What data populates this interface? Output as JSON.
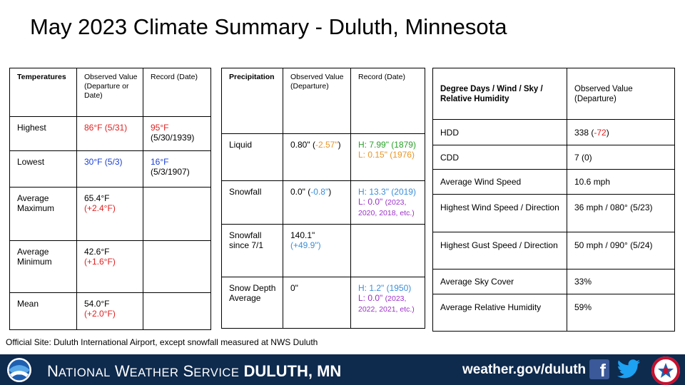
{
  "title": "May 2023 Climate Summary - Duluth, Minnesota",
  "temperatures": {
    "headers": [
      "Temperatures",
      "Observed Value (Departure or Date)",
      "Record (Date)"
    ],
    "highest": {
      "label": "Highest",
      "observed": "86°F (5/31)",
      "record_value": "95°F",
      "record_date": "(5/30/1939)"
    },
    "lowest": {
      "label": "Lowest",
      "observed": "30°F (5/3)",
      "record_value": "16°F",
      "record_date": "(5/3/1907)"
    },
    "avg_max": {
      "label": "Average Maximum",
      "value": "65.4°F",
      "departure": "(+2.4°F)"
    },
    "avg_min": {
      "label": "Average Minimum",
      "value": "42.6°F",
      "departure": "(+1.6°F)"
    },
    "mean": {
      "label": "Mean",
      "value": "54.0°F",
      "departure": "(+2.0°F)"
    }
  },
  "precipitation": {
    "headers": [
      "Precipitation",
      "Observed Value (Departure)",
      "Record (Date)"
    ],
    "liquid": {
      "label": "Liquid",
      "value": "0.80\"",
      "departure": "-2.57\"",
      "record_high": "H: 7.99\" (1879)",
      "record_low": "L: 0.15\" (1976)"
    },
    "snowfall": {
      "label": "Snowfall",
      "value": "0.0\"",
      "departure": "-0.8\"",
      "record_high": "H: 13.3\" (2019)",
      "record_low_value": "L: 0.0\"",
      "record_low_dates": "(2023, 2020, 2018, etc.)"
    },
    "snowfall_since": {
      "label": "Snowfall since 7/1",
      "value": "140.1\"",
      "departure": "(+49.9\")"
    },
    "snow_depth": {
      "label": "Snow Depth Average",
      "value": "0\"",
      "record_high": "H: 1.2\" (1950)",
      "record_low_value": "L: 0.0\"",
      "record_low_dates": "(2023, 2022, 2021, etc.)"
    }
  },
  "degree_days": {
    "headers": [
      "Degree Days / Wind / Sky / Relative Humidity",
      "Observed Value (Departure)"
    ],
    "hdd": {
      "label": "HDD",
      "value": "338",
      "departure": "-72"
    },
    "cdd": {
      "label": "CDD",
      "value": "7 (0)"
    },
    "avg_wind": {
      "label": "Average Wind Speed",
      "value": "10.6 mph"
    },
    "high_wind": {
      "label": "Highest Wind Speed / Direction",
      "value": "36 mph / 080° (5/23)"
    },
    "high_gust": {
      "label": "Highest Gust Speed / Direction",
      "value": "50 mph / 090° (5/24)"
    },
    "sky": {
      "label": "Average Sky Cover",
      "value": "33%"
    },
    "rh": {
      "label": "Average Relative Humidity",
      "value": "59%"
    }
  },
  "footnote": "Official Site: Duluth International Airport, except snowfall measured at NWS Duluth",
  "footer": {
    "nws": {
      "n": "N",
      "ational": "ATIONAL",
      "w": "W",
      "eather": "EATHER",
      "s": "S",
      "ervice": "ERVICE",
      "city": "DULUTH, MN"
    },
    "url": "weather.gov/duluth",
    "fb_letter": "f"
  },
  "icons": {
    "noaa": "noaa-logo-icon",
    "facebook": "facebook-icon",
    "twitter": "twitter-icon",
    "nws": "nws-logo-icon"
  },
  "colors": {
    "footer_bg": "#0e2a4d",
    "red": "#e02020",
    "blue": "#1a3fd6",
    "light_blue": "#3a8fd8",
    "orange": "#e8962a",
    "green": "#2aa02a",
    "purple": "#9b30c8"
  }
}
